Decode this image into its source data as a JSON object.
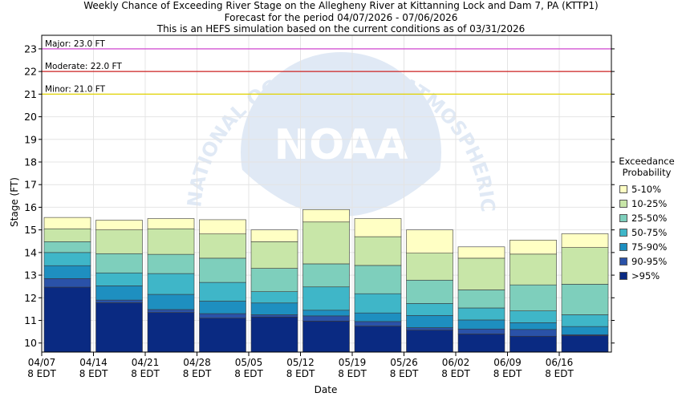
{
  "header": {
    "title": "Weekly Chance of Exceeding River Stage on the Allegheny River at Kittanning Lock and Dam 7, PA (KTTP1)",
    "subtitle1": "Forecast for the period 04/07/2026 - 07/06/2026",
    "subtitle2": "This is an HEFS simulation based on the current conditions as of 03/31/2026"
  },
  "watermark": {
    "logo_text": "NOAA",
    "ring_text": "NATIONAL OCEANIC AND ATMOSPHERIC ADMINISTRATION"
  },
  "colors": {
    "major": "#cc33cc",
    "moderate": "#cc2222",
    "minor": "#e0d200",
    "bands": [
      "#0a2a82",
      "#2a52a8",
      "#1e8fc0",
      "#3fb6c8",
      "#7ecfbc",
      "#c8e6a8",
      "#ffffc4"
    ]
  },
  "chart_data": {
    "type": "bar",
    "subtype": "stacked-floating-exceedance",
    "xlabel": "Date",
    "ylabel": "Stage (FT)",
    "ylim": [
      9.6,
      23.6
    ],
    "yticks": [
      10,
      11,
      12,
      13,
      14,
      15,
      16,
      17,
      18,
      19,
      20,
      21,
      22,
      23
    ],
    "categories": [
      "04/07",
      "04/14",
      "04/21",
      "04/28",
      "05/05",
      "05/12",
      "05/19",
      "05/26",
      "06/02",
      "06/09",
      "06/16"
    ],
    "xtick_sublabel": "8 EDT",
    "thresholds": [
      {
        "label": "Major: 23.0 FT",
        "value": 23.0
      },
      {
        "label": "Moderate: 22.0 FT",
        "value": 22.0
      },
      {
        "label": "Minor: 21.0 FT",
        "value": 21.0
      }
    ],
    "legend_title_line1": "Exceedance",
    "legend_title_line2": "Probability",
    "legend": [
      "5-10%",
      "10-25%",
      "25-50%",
      "50-75%",
      "75-90%",
      "90-95%",
      ">95%"
    ],
    "boundaries": [
      [
        12.47,
        12.85,
        13.42,
        14.0,
        14.48,
        15.05,
        15.55
      ],
      [
        11.78,
        11.9,
        12.53,
        13.1,
        13.95,
        15.0,
        15.43
      ],
      [
        11.35,
        11.48,
        12.15,
        13.07,
        13.92,
        15.05,
        15.5
      ],
      [
        11.1,
        11.3,
        11.85,
        12.68,
        13.75,
        14.82,
        15.45
      ],
      [
        11.15,
        11.25,
        11.77,
        12.27,
        13.3,
        14.48,
        15.0
      ],
      [
        10.97,
        11.2,
        11.45,
        12.48,
        13.5,
        15.35,
        15.9
      ],
      [
        10.75,
        10.95,
        11.33,
        12.18,
        13.43,
        14.7,
        15.5
      ],
      [
        10.57,
        10.68,
        11.22,
        11.75,
        12.78,
        13.97,
        15.0
      ],
      [
        10.4,
        10.62,
        11.02,
        11.55,
        12.35,
        13.75,
        14.25
      ],
      [
        10.3,
        10.6,
        10.9,
        11.42,
        12.57,
        13.93,
        14.55
      ],
      [
        10.33,
        10.37,
        10.73,
        11.25,
        12.6,
        14.22,
        14.83
      ]
    ]
  }
}
